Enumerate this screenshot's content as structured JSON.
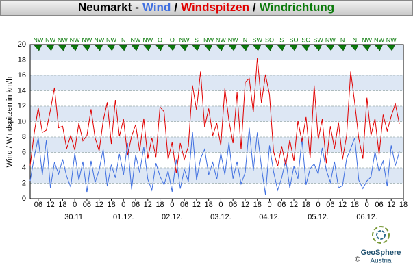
{
  "chart_data": {
    "type": "line",
    "title": "Neumarkt",
    "title_separators": [
      "-",
      "/",
      "/"
    ],
    "y_label": "Wind / Windspitzen in km/h",
    "x": [
      2,
      4,
      6,
      8,
      10,
      12,
      14,
      16,
      18,
      20,
      22,
      24,
      26,
      28,
      30,
      32,
      34,
      36,
      38,
      40,
      42,
      44,
      46,
      48,
      50,
      52,
      54,
      56,
      58,
      60,
      62,
      64,
      66,
      68,
      70,
      72,
      74,
      76,
      78,
      80,
      82,
      84,
      86,
      88,
      90,
      92,
      94,
      96,
      98,
      100,
      102,
      104,
      106,
      108,
      110,
      112,
      114,
      116,
      118,
      120,
      122,
      124,
      126,
      128,
      130,
      132,
      134,
      136,
      138,
      140,
      142,
      144,
      146,
      148,
      150,
      152,
      154,
      156,
      158,
      160,
      162,
      164,
      166,
      168,
      170,
      172,
      174,
      176,
      178,
      180,
      182,
      184
    ],
    "series": [
      {
        "name": "Wind",
        "color": "#3f6fe0",
        "values": [
          2.3,
          5.4,
          7.9,
          3.1,
          7.6,
          1.4,
          4.7,
          3.2,
          5.1,
          2.9,
          1.5,
          5.9,
          2.4,
          4.8,
          0.8,
          4.9,
          2.1,
          3.7,
          6.4,
          1.6,
          4.4,
          2.7,
          5.8,
          3.1,
          7.2,
          1.2,
          5.7,
          3.4,
          6.7,
          2.5,
          1.1,
          4.6,
          2.9,
          1.8,
          3.6,
          0.9,
          5.1,
          1.3,
          3.8,
          2.2,
          8.7,
          2.4,
          5.2,
          6.4,
          3.1,
          4.7,
          2.5,
          5.9,
          3.1,
          7.3,
          2.6,
          4.8,
          1.9,
          3.4,
          9.2,
          3.6,
          8.6,
          4.1,
          0.5,
          6.9,
          3.5,
          1.1,
          2.7,
          5.1,
          1.4,
          4.2,
          2.6,
          7.8,
          1.8,
          3.9,
          4.5,
          3.2,
          6.6,
          3.7,
          2.1,
          4.8,
          1.4,
          1.7,
          5.2,
          6.5,
          7.9,
          2.4,
          1.3,
          2.3,
          2.8,
          6.1,
          3.5,
          4.9,
          1.6,
          6.9,
          4.3,
          6.1
        ]
      },
      {
        "name": "Windspitzen",
        "color": "#e00000",
        "values": [
          4.3,
          8.5,
          11.8,
          8.6,
          8.9,
          11.5,
          14.4,
          9.2,
          9.4,
          6.5,
          8.2,
          6.3,
          9.8,
          7.5,
          8.2,
          11.6,
          7.9,
          6.2,
          10.1,
          12.5,
          7.1,
          12.8,
          8.1,
          10.3,
          5.6,
          8.1,
          9.6,
          6.2,
          10.4,
          5.2,
          7.9,
          5.4,
          11.9,
          11.3,
          5.1,
          7.3,
          3.3,
          7.2,
          5.1,
          6.8,
          14.7,
          11.5,
          16.5,
          9.3,
          11.7,
          8.2,
          9.8,
          6.9,
          14.3,
          10.1,
          7.2,
          13.8,
          6.4,
          15.1,
          15.6,
          11.2,
          18.3,
          12.4,
          16.1,
          13.5,
          6.1,
          4.2,
          6.8,
          4.3,
          7.6,
          4.9,
          10.1,
          7.4,
          10.6,
          5.3,
          14.7,
          7.7,
          10.3,
          4.6,
          9.4,
          6.5,
          9.9,
          5.1,
          8.2,
          16.5,
          12.4,
          7.8,
          5.2,
          13.1,
          8.2,
          10.4,
          5.7,
          10.9,
          8.8,
          10.7,
          12.3,
          9.7
        ]
      }
    ],
    "directions": {
      "name": "Windrichtung",
      "color": "#0a7a0a",
      "x": [
        6,
        12,
        18,
        24,
        30,
        36,
        42,
        48,
        54,
        60,
        66,
        72,
        78,
        84,
        90,
        96,
        102,
        108,
        114,
        120,
        126,
        132,
        138,
        144,
        150,
        156,
        162,
        168,
        174,
        180
      ],
      "labels": [
        "NW",
        "NW",
        "NW",
        "NW",
        "NW",
        "NW",
        "NW",
        "N",
        "NW",
        "NW",
        "O",
        "O",
        "NW",
        "S",
        "NW",
        "NW",
        "NW",
        "N",
        "SW",
        "SO",
        "S",
        "SO",
        "SO",
        "SW",
        "NW",
        "N",
        "N",
        "NW",
        "NW",
        "NW"
      ]
    },
    "xlim": [
      2,
      186
    ],
    "xticks": [
      {
        "value": 6,
        "label": "06"
      },
      12,
      18,
      {
        "value": 24,
        "label": "0"
      },
      {
        "value": 30,
        "label": "06"
      },
      {
        "value": 36,
        "label": "12"
      },
      {
        "value": 42,
        "label": "18"
      },
      {
        "value": 48,
        "label": "0"
      },
      {
        "value": 54,
        "label": "06"
      },
      {
        "value": 60,
        "label": "12"
      },
      {
        "value": 66,
        "label": "18"
      },
      {
        "value": 72,
        "label": "0"
      },
      {
        "value": 78,
        "label": "06"
      },
      {
        "value": 84,
        "label": "12"
      },
      {
        "value": 90,
        "label": "18"
      },
      {
        "value": 96,
        "label": "0"
      },
      {
        "value": 102,
        "label": "06"
      },
      {
        "value": 108,
        "label": "12"
      },
      {
        "value": 114,
        "label": "18"
      },
      {
        "value": 120,
        "label": "0"
      },
      {
        "value": 126,
        "label": "06"
      },
      {
        "value": 132,
        "label": "12"
      },
      {
        "value": 138,
        "label": "18"
      },
      {
        "value": 144,
        "label": "0"
      },
      {
        "value": 150,
        "label": "06"
      },
      {
        "value": 156,
        "label": "12"
      },
      {
        "value": 162,
        "label": "18"
      },
      {
        "value": 168,
        "label": "0"
      },
      {
        "value": 174,
        "label": "06"
      },
      {
        "value": 180,
        "label": "12"
      },
      {
        "value": 186,
        "label": "18"
      }
    ],
    "date_ticks": [
      {
        "value": 24,
        "label": "30.11."
      },
      {
        "value": 48,
        "label": "01.12."
      },
      {
        "value": 72,
        "label": "02.12."
      },
      {
        "value": 96,
        "label": "03.12."
      },
      {
        "value": 120,
        "label": "04.12."
      },
      {
        "value": 144,
        "label": "05.12."
      },
      {
        "value": 168,
        "label": "06.12."
      }
    ],
    "ylim": [
      0,
      20
    ],
    "yticks": [
      0,
      2,
      4,
      6,
      8,
      10,
      12,
      14,
      16,
      18,
      20
    ],
    "grid": true
  },
  "footer": {
    "brand": "GeoSphere",
    "country": "Austria",
    "copyright": "©"
  }
}
